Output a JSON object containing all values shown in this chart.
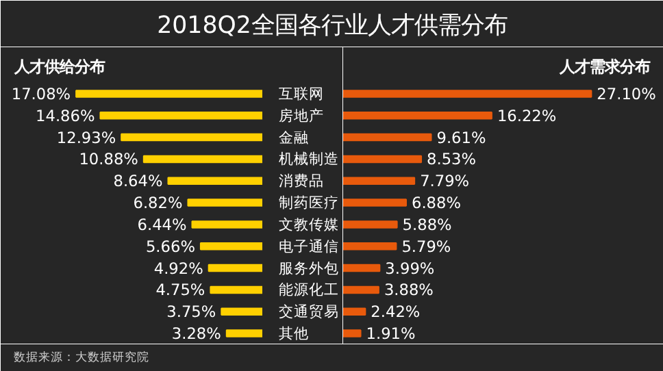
{
  "chart_data": [
    {
      "type": "bar",
      "orientation": "horizontal",
      "title": "2018Q2全国各行业人才供需分布",
      "subtitle": "人才供给分布",
      "categories": [
        "互联网",
        "房地产",
        "金融",
        "机械制造",
        "消费品",
        "制药医疗",
        "文教传媒",
        "电子通信",
        "服务外包",
        "能源化工",
        "交通贸易",
        "其他"
      ],
      "series": [
        {
          "color": "#ffd000",
          "values": [
            17.08,
            14.86,
            12.93,
            10.88,
            8.64,
            6.82,
            6.44,
            5.66,
            4.92,
            4.75,
            3.75,
            3.28
          ],
          "value_labels": [
            "17.08%",
            "14.86%",
            "12.93%",
            "10.88%",
            "8.64%",
            "6.82%",
            "6.44%",
            "5.66%",
            "4.92%",
            "4.75%",
            "3.75%",
            "3.28%"
          ]
        }
      ],
      "xlim": [
        24,
        0
      ],
      "tick_labels": "y",
      "annotations": [
        "数据来源：大数据研究院"
      ]
    },
    {
      "type": "bar",
      "orientation": "horizontal",
      "subtitle": "人才需求分布",
      "series": [
        {
          "color": "#e85a0c",
          "values": [
            27.1,
            16.22,
            9.61,
            8.53,
            7.79,
            6.88,
            5.88,
            5.79,
            3.99,
            3.88,
            2.42,
            1.91
          ],
          "value_labels": [
            "27.10%",
            "16.22%",
            "9.61%",
            "8.53%",
            "7.79%",
            "6.88%",
            "5.88%",
            "5.79%",
            "3.99%",
            "3.88%",
            "2.42%",
            "1.91%"
          ]
        }
      ],
      "xlim": [
        0,
        35
      ],
      "tick_labels": false
    }
  ]
}
